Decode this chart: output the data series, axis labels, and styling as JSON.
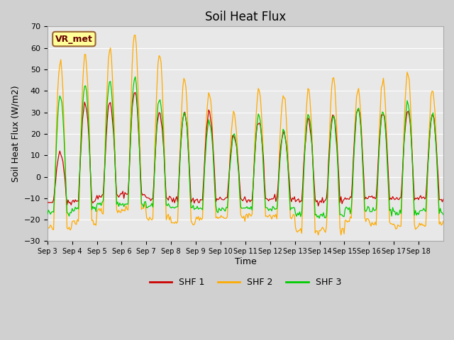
{
  "title": "Soil Heat Flux",
  "ylabel": "Soil Heat Flux (W/m2)",
  "xlabel": "Time",
  "ylim": [
    -30,
    70
  ],
  "shf1_color": "#cc0000",
  "shf2_color": "#ffaa00",
  "shf3_color": "#00cc00",
  "legend_label1": "SHF 1",
  "legend_label2": "SHF 2",
  "legend_label3": "SHF 3",
  "annotation": "VR_met",
  "x_tick_labels": [
    "Sep 3",
    "Sep 4",
    "Sep 5",
    "Sep 6",
    "Sep 7",
    "Sep 8",
    "Sep 9",
    "Sep 10",
    "Sep 11",
    "Sep 12",
    "Sep 13",
    "Sep 14",
    "Sep 15",
    "Sep 16",
    "Sep 17",
    "Sep 18"
  ],
  "yticks": [
    -30,
    -20,
    -10,
    0,
    10,
    20,
    30,
    40,
    50,
    60,
    70
  ],
  "n_days": 16,
  "shf2_peaks": [
    54,
    56,
    60,
    67,
    57,
    46,
    39,
    30,
    41,
    38,
    41,
    47,
    41,
    45,
    49,
    40
  ],
  "shf1_peaks": [
    12,
    35,
    35,
    40,
    30,
    30,
    30,
    19,
    26,
    21,
    26,
    29,
    32,
    30,
    31,
    28
  ],
  "shf3_peaks": [
    38,
    43,
    45,
    46,
    36,
    30,
    26,
    20,
    29,
    21,
    29,
    28,
    32,
    30,
    34,
    29
  ],
  "shf2_troughs": [
    -24,
    -21,
    -16,
    -15,
    -19,
    -21,
    -19,
    -19,
    -18,
    -19,
    -25,
    -25,
    -20,
    -22,
    -23,
    -22
  ],
  "shf1_troughs": [
    -12,
    -11,
    -9,
    -8,
    -10,
    -11,
    -11,
    -10,
    -11,
    -10,
    -11,
    -11,
    -10,
    -10,
    -10,
    -10
  ],
  "shf3_troughs": [
    -17,
    -15,
    -13,
    -13,
    -14,
    -15,
    -15,
    -15,
    -15,
    -15,
    -18,
    -18,
    -15,
    -16,
    -17,
    -16
  ]
}
